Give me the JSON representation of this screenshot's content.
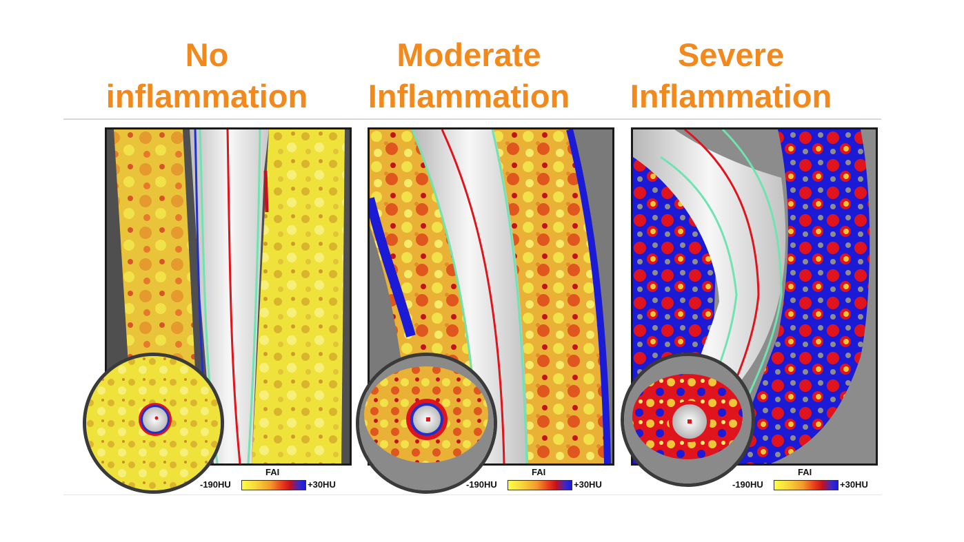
{
  "panels": [
    {
      "title_line1": "No",
      "title_line2": "inflammation",
      "legend_label": "FAI",
      "legend_min": "-190HU",
      "legend_max": "+30HU"
    },
    {
      "title_line1": "Moderate",
      "title_line2": "Inflammation",
      "legend_label": "FAI",
      "legend_min": "-190HU",
      "legend_max": "+30HU"
    },
    {
      "title_line1": "Severe",
      "title_line2": "Inflammation",
      "legend_label": "FAI",
      "legend_min": "-190HU",
      "legend_max": "+30HU"
    }
  ],
  "colors": {
    "title": "#f2891c",
    "fai_low": "#fffe46",
    "fai_mid": "#f29a2a",
    "fai_high_red": "#e8391c",
    "fai_high_blue": "#1b1bd6",
    "centerline": "#e0141c",
    "vessel_outline": "#6fe3b0"
  }
}
